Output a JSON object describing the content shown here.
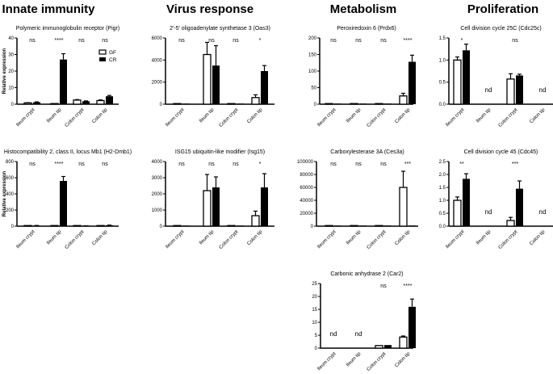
{
  "column_headers": [
    "Innate immunity",
    "Virus response",
    "Metabolism",
    "Proliferation"
  ],
  "legend": [
    {
      "name": "GF",
      "color": "#ffffff"
    },
    {
      "name": "CR",
      "color": "#000000"
    }
  ],
  "ylabel": "Relative expression",
  "chart_data": [
    {
      "type": "bar",
      "title": "Polymeric immunoglobulin receptor (Pigr)",
      "ylabel": "Relative expression",
      "ylim": [
        0,
        40
      ],
      "yticks": [
        "0",
        "10",
        "20",
        "30",
        "40"
      ],
      "categories": [
        "Ileum crypt",
        "Ileum tip",
        "Colon crypt",
        "Colon tip"
      ],
      "significance": [
        "ns",
        "****",
        "ns",
        "ns"
      ],
      "series": [
        {
          "name": "GF",
          "values": [
            0.8,
            0.3,
            2.5,
            2.2
          ],
          "errors": [
            0.1,
            0,
            0.3,
            0.4
          ]
        },
        {
          "name": "CR",
          "values": [
            1.2,
            27,
            1.8,
            4.8
          ],
          "errors": [
            0.2,
            3.5,
            0.2,
            0.5
          ]
        }
      ]
    },
    {
      "type": "bar",
      "title": "2'-5' oligoadenylate synthetase 3 (Oas3)",
      "ylim": [
        0,
        6000
      ],
      "yticks": [
        "0",
        "2000",
        "4000",
        "6000"
      ],
      "categories": [
        "Ileum crypt",
        "Ileum tip",
        "Colon crypt",
        "Colon tip"
      ],
      "significance": [
        "ns",
        "ns",
        "ns",
        "*"
      ],
      "series": [
        {
          "name": "GF",
          "values": [
            0,
            4500,
            0,
            600
          ],
          "errors": [
            0,
            1100,
            0,
            250
          ]
        },
        {
          "name": "CR",
          "values": [
            0,
            3500,
            0,
            3000
          ],
          "errors": [
            0,
            1800,
            0,
            500
          ]
        }
      ]
    },
    {
      "type": "bar",
      "title": "Peroxiredoxin 6 (Prdx6)",
      "ylim": [
        0,
        200
      ],
      "yticks": [
        "0",
        "50",
        "100",
        "150",
        "200"
      ],
      "categories": [
        "Ileum crypt",
        "Ileum tip",
        "Colon crypt",
        "Colon tip"
      ],
      "significance": [
        "ns",
        "ns",
        "ns",
        "****"
      ],
      "series": [
        {
          "name": "GF",
          "values": [
            1,
            1,
            0,
            25
          ],
          "errors": [
            0,
            0,
            0,
            8
          ]
        },
        {
          "name": "CR",
          "values": [
            1,
            1,
            0,
            128
          ],
          "errors": [
            0,
            0,
            0,
            20
          ]
        }
      ]
    },
    {
      "type": "bar",
      "title": "Cell division cycle 25C (Cdc25c)",
      "ylim": [
        0,
        1.5
      ],
      "yticks": [
        "0.0",
        "0.5",
        "1.0",
        "1.5"
      ],
      "categories": [
        "Ileum crypt",
        "Ileum tip",
        "Colon crypt",
        "Colon tip"
      ],
      "significance": [
        "*",
        "",
        "ns",
        ""
      ],
      "not_detected": [
        false,
        true,
        false,
        true
      ],
      "nd_label": "nd",
      "series": [
        {
          "name": "GF",
          "values": [
            1.0,
            0,
            0.57,
            0
          ],
          "errors": [
            0.07,
            0,
            0.12,
            0
          ]
        },
        {
          "name": "CR",
          "values": [
            1.22,
            0,
            0.65,
            0
          ],
          "errors": [
            0.14,
            0,
            0.03,
            0
          ]
        }
      ]
    },
    {
      "type": "bar",
      "title": "Histocompatibility 2, class II, locus Mb1 (H2-Dmb1)",
      "ylabel": "Relative expression",
      "ylim": [
        0,
        800
      ],
      "yticks": [
        "0",
        "200",
        "400",
        "600",
        "800"
      ],
      "categories": [
        "Ileum crypt",
        "Ileum tip",
        "Colon crypt",
        "Colon tip"
      ],
      "significance": [
        "ns",
        "****",
        "ns",
        "ns"
      ],
      "series": [
        {
          "name": "GF",
          "values": [
            0,
            0,
            0,
            2
          ],
          "errors": [
            0,
            0,
            0,
            0
          ]
        },
        {
          "name": "CR",
          "values": [
            8,
            560,
            4,
            12
          ],
          "errors": [
            1,
            55,
            1,
            2
          ]
        }
      ]
    },
    {
      "type": "bar",
      "title": "ISG15 ubiquitin-like modifier (Isg15)",
      "ylim": [
        0,
        4000
      ],
      "yticks": [
        "0",
        "1000",
        "2000",
        "3000",
        "4000"
      ],
      "categories": [
        "Ileum crypt",
        "Ileum tip",
        "Colon crypt",
        "Colon tip"
      ],
      "significance": [
        "ns",
        "ns",
        "ns",
        "*"
      ],
      "series": [
        {
          "name": "GF",
          "values": [
            0,
            2200,
            0,
            650
          ],
          "errors": [
            0,
            1000,
            0,
            280
          ]
        },
        {
          "name": "CR",
          "values": [
            0,
            2400,
            0,
            2400
          ],
          "errors": [
            0,
            650,
            0,
            850
          ]
        }
      ]
    },
    {
      "type": "bar",
      "title": "Carboxylesterase 3A (Ces3a)",
      "ylim": [
        0,
        100000
      ],
      "yticks": [
        "0",
        "20000",
        "40000",
        "60000",
        "80000",
        "100000"
      ],
      "categories": [
        "Ileum crypt",
        "Ileum tip",
        "Colon crypt",
        "Colon tip"
      ],
      "significance": [
        "ns",
        "ns",
        "ns",
        "***"
      ],
      "series": [
        {
          "name": "GF",
          "values": [
            0,
            0,
            0,
            60000
          ],
          "errors": [
            0,
            0,
            0,
            25000
          ]
        },
        {
          "name": "CR",
          "values": [
            0,
            0,
            0,
            0
          ],
          "errors": [
            0,
            0,
            0,
            0
          ]
        }
      ]
    },
    {
      "type": "bar",
      "title": "Cell division cycle 45 (Cdc45)",
      "ylim": [
        0,
        2.5
      ],
      "yticks": [
        "0.0",
        "0.5",
        "1.0",
        "1.5",
        "2.0",
        "2.5"
      ],
      "categories": [
        "Ileum crypt",
        "Ileum tip",
        "Colon crypt",
        "Colon tip"
      ],
      "significance": [
        "**",
        "",
        "***",
        ""
      ],
      "not_detected": [
        false,
        true,
        false,
        true
      ],
      "nd_label": "nd",
      "series": [
        {
          "name": "GF",
          "values": [
            1.0,
            0,
            0.22,
            0
          ],
          "errors": [
            0.13,
            0,
            0.12,
            0
          ]
        },
        {
          "name": "CR",
          "values": [
            1.83,
            0,
            1.45,
            0
          ],
          "errors": [
            0.2,
            0,
            0.3,
            0
          ]
        }
      ]
    },
    {
      "type": "bar",
      "title": "Carbonic anhydrase 2 (Car2)",
      "ylim": [
        0,
        25
      ],
      "yticks": [
        "0",
        "5",
        "10",
        "15",
        "20",
        "25"
      ],
      "categories": [
        "Ileum crypt",
        "Ileum tip",
        "Colon crypt",
        "Colon tip"
      ],
      "significance": [
        "",
        "",
        "ns",
        "****"
      ],
      "not_detected": [
        true,
        true,
        false,
        false
      ],
      "nd_label": "nd",
      "series": [
        {
          "name": "GF",
          "values": [
            0,
            0,
            1,
            4.3
          ],
          "errors": [
            0,
            0,
            0,
            0.4
          ]
        },
        {
          "name": "CR",
          "values": [
            0,
            0,
            1.2,
            16
          ],
          "errors": [
            0,
            0,
            0,
            3
          ]
        }
      ]
    }
  ]
}
